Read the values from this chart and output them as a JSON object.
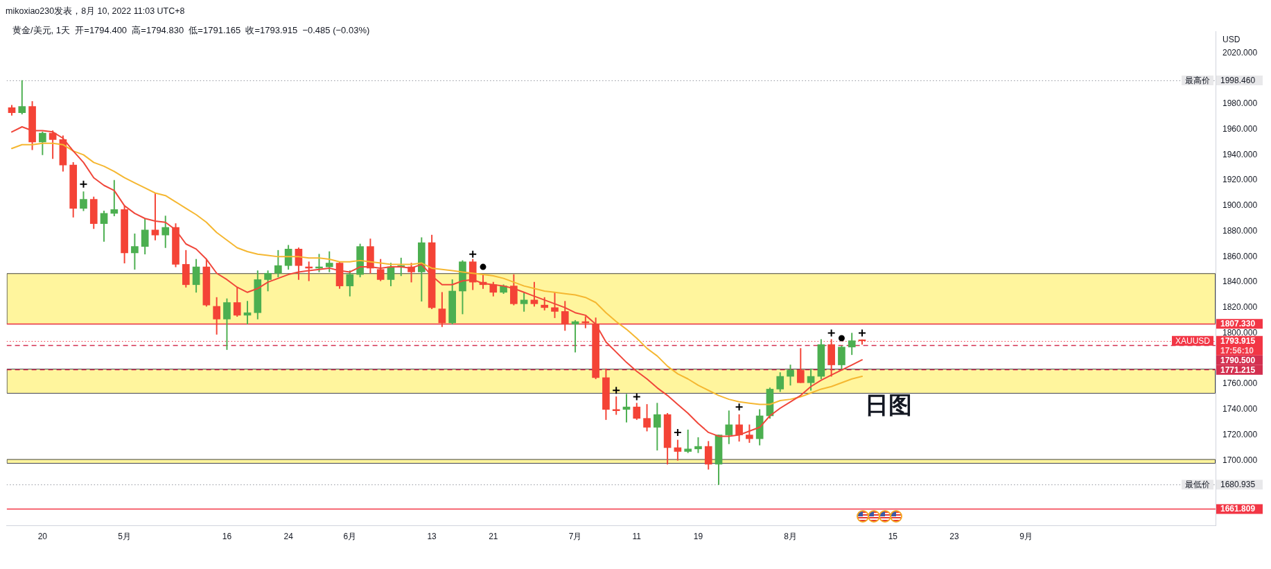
{
  "chart_data": {
    "type": "candlestick",
    "title": "黄金/美元, 1天  开=1794.400  高=1794.830  低=1791.165  收=1793.915  −0.485 (−0.03%)",
    "ylabel": "USD",
    "annotations": [
      "mikoxiao230发表，8月 10, 2022 11:03 UTC+8",
      "17:56:10"
    ],
    "categories": [
      null,
      null,
      null,
      "20",
      null,
      null,
      null,
      null,
      null,
      null,
      null,
      "5月",
      null,
      null,
      null,
      null,
      null,
      null,
      null,
      null,
      null,
      "16",
      null,
      null,
      null,
      null,
      null,
      "24",
      null,
      null,
      null,
      null,
      null,
      "6月",
      null,
      null,
      null,
      null,
      null,
      null,
      null,
      "13",
      null,
      null,
      null,
      null,
      null,
      "21",
      null,
      null,
      null,
      null,
      null,
      null,
      null,
      "7月",
      null,
      null,
      null,
      null,
      null,
      "11",
      null,
      null,
      null,
      null,
      null,
      "19",
      null,
      null,
      null,
      null,
      null,
      null,
      null,
      null,
      "8月",
      null,
      null,
      null,
      null,
      null,
      null,
      null,
      null,
      null,
      "15",
      null,
      null,
      null,
      null,
      null,
      "23",
      null,
      null,
      null,
      null,
      null,
      null,
      "9月",
      null,
      null,
      null,
      null,
      null,
      null,
      null,
      null,
      null,
      null,
      null,
      null,
      null,
      null,
      null,
      null,
      null,
      null
    ],
    "ohlc": [
      [
        1977,
        1979,
        1971,
        1973
      ],
      [
        1973,
        1998.46,
        1972,
        1978
      ],
      [
        1978,
        1982,
        1944,
        1950
      ],
      [
        1950,
        1958,
        1940,
        1957
      ],
      [
        1957,
        1959,
        1937,
        1952
      ],
      [
        1952,
        1955,
        1927,
        1932
      ],
      [
        1932,
        1934,
        1891,
        1898
      ],
      [
        1898,
        1911,
        1896,
        1905
      ],
      [
        1905,
        1907,
        1882,
        1886
      ],
      [
        1886,
        1896,
        1872,
        1894
      ],
      [
        1894,
        1920,
        1892,
        1897
      ],
      [
        1897,
        1900,
        1855,
        1863
      ],
      [
        1863,
        1878,
        1850,
        1868
      ],
      [
        1868,
        1890,
        1862,
        1881
      ],
      [
        1881,
        1910,
        1873,
        1877
      ],
      [
        1877,
        1892,
        1867,
        1883
      ],
      [
        1883,
        1886,
        1852,
        1854
      ],
      [
        1854,
        1865,
        1836,
        1838
      ],
      [
        1838,
        1858,
        1832,
        1852
      ],
      [
        1852,
        1858,
        1821,
        1822
      ],
      [
        1821,
        1828,
        1799,
        1811
      ],
      [
        1811,
        1827,
        1787,
        1824
      ],
      [
        1824,
        1836,
        1813,
        1814
      ],
      [
        1814,
        1825,
        1807,
        1816
      ],
      [
        1816,
        1849,
        1811,
        1842
      ],
      [
        1842,
        1849,
        1833,
        1847
      ],
      [
        1847,
        1865,
        1844,
        1853
      ],
      [
        1853,
        1869,
        1850,
        1866
      ],
      [
        1866,
        1867,
        1842,
        1853
      ],
      [
        1852,
        1856,
        1841,
        1851
      ],
      [
        1851,
        1862,
        1848,
        1852
      ],
      [
        1852,
        1864,
        1848,
        1855
      ],
      [
        1855,
        1856,
        1835,
        1837
      ],
      [
        1837,
        1849,
        1829,
        1846
      ],
      [
        1846,
        1870,
        1844,
        1868
      ],
      [
        1868,
        1874,
        1847,
        1851
      ],
      [
        1850,
        1858,
        1841,
        1842
      ],
      [
        1842,
        1855,
        1837,
        1852
      ],
      [
        1852,
        1859,
        1845,
        1853
      ],
      [
        1852,
        1855,
        1840,
        1848
      ],
      [
        1848,
        1875,
        1825,
        1871
      ],
      [
        1871,
        1877,
        1819,
        1820
      ],
      [
        1819,
        1832,
        1805,
        1808
      ],
      [
        1808,
        1842,
        1807,
        1833
      ],
      [
        1833,
        1857,
        1815,
        1856
      ],
      [
        1856,
        1858,
        1834,
        1840
      ],
      [
        1840,
        1846,
        1835,
        1838
      ],
      [
        1838,
        1840,
        1829,
        1832
      ],
      [
        1832,
        1838,
        1831,
        1837
      ],
      [
        1837,
        1846,
        1822,
        1823
      ],
      [
        1823,
        1832,
        1817,
        1826
      ],
      [
        1826,
        1840,
        1821,
        1823
      ],
      [
        1822,
        1828,
        1818,
        1820
      ],
      [
        1820,
        1832,
        1812,
        1817
      ],
      [
        1817,
        1825,
        1802,
        1807
      ],
      [
        1807,
        1810,
        1785,
        1809
      ],
      [
        1809,
        1813,
        1804,
        1808
      ],
      [
        1807,
        1812,
        1764,
        1765
      ],
      [
        1765,
        1772,
        1732,
        1740
      ],
      [
        1740,
        1750,
        1736,
        1739
      ],
      [
        1740,
        1752,
        1730,
        1742
      ],
      [
        1742,
        1745,
        1732,
        1733
      ],
      [
        1733,
        1744,
        1723,
        1726
      ],
      [
        1726,
        1745,
        1708,
        1736
      ],
      [
        1736,
        1737,
        1697,
        1710
      ],
      [
        1710,
        1716,
        1700,
        1707
      ],
      [
        1707,
        1724,
        1706,
        1709
      ],
      [
        1709,
        1718,
        1706,
        1711
      ],
      [
        1711,
        1715,
        1693,
        1697
      ],
      [
        1697,
        1720,
        1680.935,
        1720
      ],
      [
        1720,
        1739,
        1713,
        1728
      ],
      [
        1728,
        1736,
        1715,
        1720
      ],
      [
        1720,
        1728,
        1714,
        1717
      ],
      [
        1717,
        1740,
        1712,
        1735
      ],
      [
        1735,
        1757,
        1733,
        1756
      ],
      [
        1756,
        1769,
        1754,
        1766
      ],
      [
        1766,
        1775,
        1759,
        1771
      ],
      [
        1771,
        1788,
        1761,
        1761
      ],
      [
        1761,
        1772,
        1755,
        1766
      ],
      [
        1766,
        1795,
        1764,
        1791
      ],
      [
        1791,
        1795,
        1766,
        1775
      ],
      [
        1775,
        1790,
        1772,
        1789
      ],
      [
        1789,
        1800,
        1783,
        1794
      ],
      [
        1794.4,
        1794.83,
        1791.165,
        1793.915
      ],
      null,
      null,
      null,
      null,
      null,
      null,
      null,
      null,
      null,
      null,
      null,
      null,
      null,
      null,
      null,
      null,
      null,
      null,
      null,
      null,
      null,
      null,
      null,
      null,
      null,
      null,
      null,
      null,
      null,
      null,
      null,
      null,
      null,
      null
    ],
    "colors": [
      "#f44336",
      "#4caf50",
      "#f44336",
      "#4caf50",
      "#f44336",
      "#f44336",
      "#f44336",
      "#4caf50",
      "#f44336",
      "#4caf50",
      "#4caf50",
      "#f44336",
      "#4caf50",
      "#4caf50",
      "#f44336",
      "#4caf50",
      "#f44336",
      "#f44336",
      "#4caf50",
      "#f44336",
      "#f44336",
      "#4caf50",
      "#f44336",
      "#4caf50",
      "#4caf50",
      "#4caf50",
      "#4caf50",
      "#4caf50",
      "#f44336",
      "#f44336",
      "#4caf50",
      "#4caf50",
      "#f44336",
      "#4caf50",
      "#4caf50",
      "#f44336",
      "#f44336",
      "#4caf50",
      "#4caf50",
      "#f44336",
      "#4caf50",
      "#f44336",
      "#f44336",
      "#4caf50",
      "#4caf50",
      "#f44336",
      "#f44336",
      "#f44336",
      "#4caf50",
      "#f44336",
      "#4caf50",
      "#f44336",
      "#f44336",
      "#f44336",
      "#f44336",
      "#4caf50",
      "#f44336",
      "#f44336",
      "#f44336",
      "#f44336",
      "#4caf50",
      "#f44336",
      "#f44336",
      "#4caf50",
      "#f44336",
      "#f44336",
      "#4caf50",
      "#4caf50",
      "#f44336",
      "#4caf50",
      "#4caf50",
      "#f44336",
      "#f44336",
      "#4caf50",
      "#4caf50",
      "#4caf50",
      "#4caf50",
      "#f44336",
      "#4caf50",
      "#4caf50",
      "#f44336",
      "#4caf50",
      "#4caf50",
      "#f44336",
      null,
      null,
      null,
      null,
      null,
      null,
      null,
      null,
      null,
      null,
      null,
      null,
      null,
      null,
      null,
      null,
      null,
      null,
      null,
      null,
      null,
      null,
      null,
      null,
      null,
      null,
      null,
      null,
      null,
      null,
      null,
      null,
      null,
      null
    ],
    "series": [
      {
        "type": "line",
        "color": "#f0463a",
        "values": [
          1958,
          1962,
          1959,
          1959,
          1958,
          1953,
          1943,
          1934,
          1922,
          1916,
          1912,
          1900,
          1894,
          1890,
          1888,
          1887,
          1881,
          1870,
          1866,
          1858,
          1847,
          1842,
          1836,
          1832,
          1835,
          1840,
          1843,
          1846,
          1848,
          1849,
          1850,
          1851,
          1849,
          1848,
          1852,
          1852,
          1851,
          1852,
          1852,
          1851,
          1854,
          1845,
          1838,
          1838,
          1841,
          1842,
          1839,
          1838,
          1837,
          1835,
          1832,
          1829,
          1826,
          1823,
          1820,
          1816,
          1814,
          1807,
          1793,
          1785,
          1777,
          1770,
          1764,
          1757,
          1751,
          1744,
          1737,
          1729,
          1722,
          1719,
          1719,
          1720,
          1723,
          1726,
          1735,
          1741,
          1746,
          1751,
          1758,
          1763,
          1767,
          1771,
          1775,
          1779,
          null,
          null,
          null,
          null,
          null,
          null,
          null,
          null,
          null,
          null,
          null,
          null,
          null,
          null,
          null,
          null,
          null,
          null,
          null,
          null,
          null,
          null,
          null,
          null,
          null,
          null,
          null,
          null,
          null,
          null,
          null,
          null,
          null,
          null
        ]
      },
      {
        "type": "line",
        "color": "#f5b731",
        "values": [
          1945,
          1948,
          1948,
          1949,
          1949,
          1948,
          1943,
          1940,
          1934,
          1931,
          1927,
          1922,
          1918,
          1914,
          1910,
          1908,
          1903,
          1898,
          1893,
          1887,
          1879,
          1873,
          1867,
          1864,
          1862,
          1861,
          1860,
          1860,
          1860,
          1859,
          1859,
          1858,
          1856,
          1856,
          1857,
          1856,
          1855,
          1854,
          1854,
          1854,
          1855,
          1851,
          1850,
          1849,
          1848,
          1847,
          1846,
          1845,
          1843,
          1840,
          1837,
          1835,
          1833,
          1832,
          1831,
          1830,
          1828,
          1824,
          1816,
          1809,
          1803,
          1796,
          1788,
          1782,
          1774,
          1768,
          1764,
          1759,
          1755,
          1751,
          1748,
          1746,
          1745,
          1744,
          1744,
          1747,
          1748,
          1750,
          1753,
          1756,
          1758,
          1761,
          1764,
          1766,
          null,
          null,
          null,
          null,
          null,
          null,
          null,
          null,
          null,
          null,
          null,
          null,
          null,
          null,
          null,
          null,
          null,
          null,
          null,
          null,
          null,
          null,
          null,
          null,
          null,
          null,
          null,
          null,
          null,
          null,
          null,
          null,
          null,
          null
        ]
      },
      {
        "type": "scatter",
        "color": "#000000",
        "marker": "cross",
        "values": [
          null,
          null,
          null,
          null,
          null,
          null,
          null,
          1917,
          null,
          null,
          null,
          null,
          null,
          null,
          null,
          null,
          null,
          null,
          null,
          null,
          null,
          null,
          null,
          null,
          null,
          null,
          null,
          null,
          null,
          null,
          null,
          null,
          null,
          null,
          null,
          null,
          null,
          null,
          null,
          null,
          null,
          null,
          null,
          null,
          null,
          1862,
          null,
          null,
          null,
          null,
          null,
          null,
          null,
          null,
          null,
          null,
          null,
          null,
          null,
          1755,
          null,
          1750,
          null,
          null,
          null,
          1722,
          null,
          null,
          null,
          null,
          null,
          1742,
          null,
          null,
          null,
          null,
          null,
          null,
          null,
          null,
          1800,
          null,
          null,
          1800,
          null,
          null,
          null,
          null,
          null,
          null,
          null,
          null,
          null,
          null,
          null,
          null,
          null,
          null,
          null,
          null,
          null,
          null,
          null,
          null,
          null,
          null,
          null,
          null,
          null,
          null,
          null,
          null,
          null,
          null,
          null,
          null,
          null,
          null
        ]
      },
      {
        "type": "scatter",
        "color": "#000000",
        "marker": "circle",
        "values": [
          null,
          null,
          null,
          null,
          null,
          null,
          null,
          null,
          null,
          null,
          null,
          null,
          null,
          null,
          null,
          null,
          null,
          null,
          null,
          null,
          null,
          null,
          null,
          null,
          null,
          null,
          null,
          null,
          null,
          null,
          null,
          null,
          null,
          null,
          null,
          null,
          null,
          null,
          null,
          null,
          null,
          null,
          null,
          null,
          null,
          null,
          1852,
          null,
          null,
          null,
          null,
          null,
          null,
          null,
          null,
          null,
          null,
          null,
          null,
          null,
          null,
          null,
          null,
          null,
          null,
          null,
          null,
          null,
          null,
          null,
          null,
          null,
          null,
          null,
          null,
          null,
          null,
          null,
          null,
          null,
          null,
          1796,
          null,
          null,
          null,
          null,
          null,
          null,
          null,
          null,
          null,
          null,
          null,
          null,
          null,
          null,
          null,
          null,
          null,
          null,
          null,
          null,
          null,
          null,
          null,
          null,
          null,
          null,
          null,
          null,
          null,
          null,
          null,
          null,
          null,
          null,
          null,
          null
        ]
      }
    ],
    "ref_lines": [
      {
        "axis": "y",
        "value": 1998.46,
        "label": "最高价",
        "color": "#9598a1",
        "line_style": "dotted"
      },
      {
        "axis": "y",
        "value": 1807.33,
        "color": "#f23645",
        "line_style": "solid"
      },
      {
        "axis": "y",
        "value": 1793.915,
        "label": "XAUUSD",
        "color": "#f23645",
        "line_style": "dotted"
      },
      {
        "axis": "y",
        "value": 1790.5,
        "label": "1790.500",
        "color": "#d32f4f",
        "line_style": "dashed"
      },
      {
        "axis": "y",
        "value": 1771.215,
        "label": "1771.215",
        "color": "#d32f4f",
        "line_style": "dashed"
      },
      {
        "axis": "y",
        "value": 1680.935,
        "label": "最低价",
        "color": "#9598a1",
        "line_style": "dotted"
      },
      {
        "axis": "y",
        "value": 1661.809,
        "color": "#f23645",
        "line_style": "solid"
      }
    ],
    "bands": [
      {
        "axis": "y",
        "from": 1807.33,
        "to": 1847,
        "color": "#fff59d"
      },
      {
        "axis": "y",
        "from": 1753,
        "to": 1772,
        "label": "日图",
        "color": "#fff59d"
      },
      {
        "axis": "y",
        "from": 1698,
        "to": 1701,
        "color": "#fff59d"
      }
    ],
    "ylim": [
      1649,
      2037
    ],
    "yticks": [
      {
        "value": 2020,
        "label": "2020.000"
      },
      {
        "value": 1998.46,
        "label": "1998.460"
      },
      {
        "value": 1980,
        "label": "1980.000"
      },
      {
        "value": 1960,
        "label": "1960.000"
      },
      {
        "value": 1940,
        "label": "1940.000"
      },
      {
        "value": 1920,
        "label": "1920.000"
      },
      {
        "value": 1900,
        "label": "1900.000"
      },
      {
        "value": 1880,
        "label": "1880.000"
      },
      {
        "value": 1860,
        "label": "1860.000"
      },
      {
        "value": 1840,
        "label": "1840.000"
      },
      {
        "value": 1820,
        "label": "1820.000"
      },
      {
        "value": 1807.33,
        "label": "1807.330"
      },
      {
        "value": 1800,
        "label": "1800.000"
      },
      {
        "value": 1793.915,
        "label": "1793.915"
      },
      {
        "value": 1760,
        "label": "1760.000"
      },
      {
        "value": 1740,
        "label": "1740.000"
      },
      {
        "value": 1720,
        "label": "1720.000"
      },
      {
        "value": 1700,
        "label": "1700.000"
      },
      {
        "value": 1680.935,
        "label": "1680.935"
      },
      {
        "value": 1661.809,
        "label": "1661.809"
      }
    ]
  }
}
